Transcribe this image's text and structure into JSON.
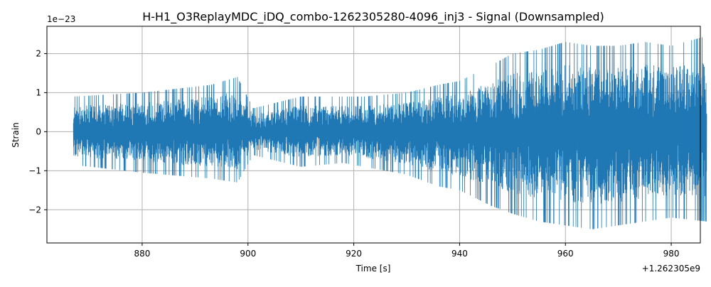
{
  "chart_data": {
    "type": "line",
    "title": "H-H1_O3ReplayMDC_iDQ_combo-1262305280-4096_inj3 - Signal (Downsampled)",
    "xlabel": "Time [s]",
    "ylabel": "Strain",
    "x_offset_label": "+1.262305e9",
    "y_scale_label": "1e−23",
    "xlim": [
      862,
      985.5
    ],
    "ylim": [
      -2.85,
      2.7
    ],
    "x_ticks": [
      880,
      900,
      920,
      940,
      960,
      980
    ],
    "x_tick_labels": [
      "880",
      "900",
      "920",
      "940",
      "960",
      "980"
    ],
    "y_ticks": [
      -2,
      -1,
      0,
      1,
      2
    ],
    "y_tick_labels": [
      "−2",
      "−1",
      "0",
      "1",
      "2"
    ],
    "grid": true,
    "series": [
      {
        "color": "#1f77b4",
        "x_range": [
          867,
          986.7
        ],
        "envelope": {
          "x": [
            867,
            880,
            893,
            898,
            901,
            910,
            918,
            922,
            930,
            936,
            940,
            946,
            950,
            955,
            960,
            965,
            970,
            975,
            980,
            986.7
          ],
          "y_max": [
            0.9,
            1.0,
            1.2,
            1.4,
            0.6,
            0.9,
            0.9,
            0.9,
            1.0,
            1.2,
            1.3,
            1.7,
            2.0,
            2.1,
            2.3,
            2.2,
            2.2,
            2.3,
            2.2,
            2.45
          ],
          "y_min": [
            -0.85,
            -1.05,
            -1.2,
            -1.3,
            -0.6,
            -0.9,
            -0.8,
            -0.9,
            -1.1,
            -1.4,
            -1.5,
            -1.9,
            -2.1,
            -2.3,
            -2.4,
            -2.5,
            -2.4,
            -2.3,
            -2.2,
            -2.3
          ]
        }
      }
    ]
  }
}
